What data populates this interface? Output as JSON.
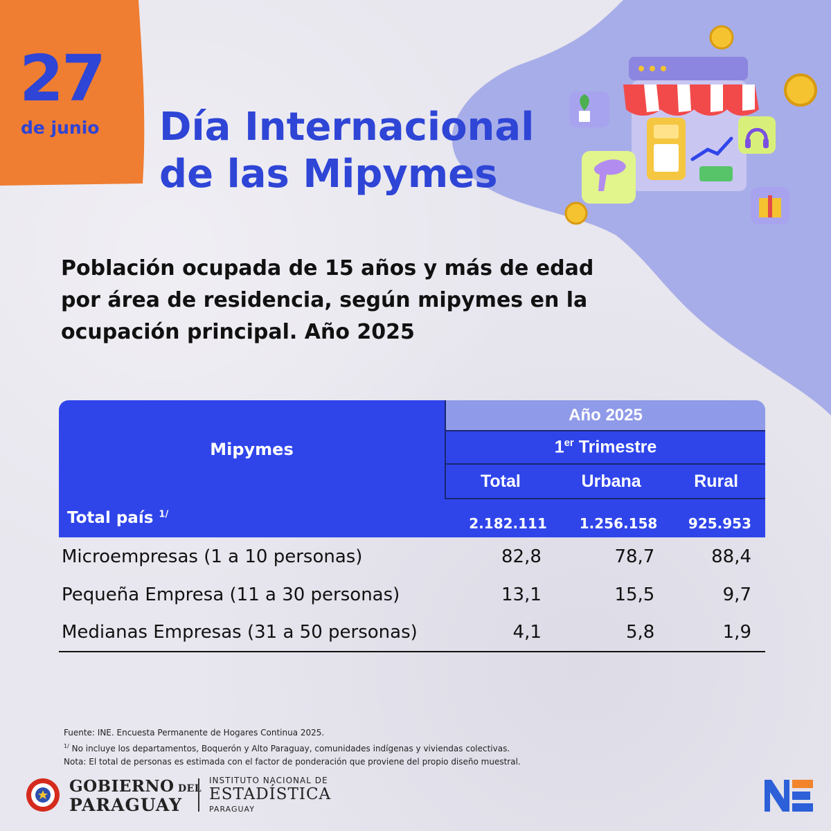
{
  "date": {
    "day": "27",
    "month": "de junio"
  },
  "title": {
    "line1": "Día Internacional",
    "line2": "de las Mipymes"
  },
  "subtitle": {
    "line1": "Población ocupada de 15 años y más de edad",
    "line2": "por área de residencia, según mipymes en la",
    "line3": "ocupación principal. Año 2025"
  },
  "table": {
    "row_header": "Mipymes",
    "year_header": "Año 2025",
    "trimester_prefix": "1",
    "trimester_sup": "er",
    "trimester_label": " Trimestre",
    "columns": [
      "Total",
      "Urbana",
      "Rural"
    ],
    "total_row": {
      "label": "Total país",
      "label_sup": "1/",
      "values": [
        "2.182.111",
        "1.256.158",
        "925.953"
      ]
    },
    "rows": [
      {
        "label": "Microempresas (1 a 10 personas)",
        "values": [
          "82,8",
          "78,7",
          "88,4"
        ]
      },
      {
        "label": "Pequeña Empresa (11 a 30 personas)",
        "values": [
          "13,1",
          "15,5",
          "9,7"
        ]
      },
      {
        "label": "Medianas Empresas (31 a 50 personas)",
        "values": [
          "4,1",
          "5,8",
          "1,9"
        ]
      }
    ]
  },
  "footnotes": {
    "source": "Fuente: INE. Encuesta Permanente de Hogares Continua 2025.",
    "note1_sup": "1/",
    "note1": " No incluye los departamentos, Boquerón y Alto Paraguay, comunidades indígenas y viviendas colectivas.",
    "note2": "Nota: El total de personas es estimada con el factor de ponderación que proviene del propio diseño muestral."
  },
  "logos": {
    "gov_line1_a": "GOBIERNO",
    "gov_line1_b": " DEL",
    "gov_line2": "PARAGUAY",
    "ine_line1": "INSTITUTO NACIONAL DE",
    "ine_line2": "ESTADÍSTICA",
    "ine_line3": "PARAGUAY"
  },
  "colors": {
    "brand_blue": "#2f45ea",
    "light_blue": "#8f9ae8",
    "orange": "#ef7d32",
    "lavender": "#a7ade8",
    "background": "#e8e6ee"
  },
  "icons": [
    "storefront-illustration-icon",
    "coin-icon",
    "plant-icon",
    "headphones-icon",
    "gift-icon",
    "hairdryer-icon",
    "pos-terminal-icon",
    "flag-seal-icon",
    "ine-monogram-icon"
  ]
}
